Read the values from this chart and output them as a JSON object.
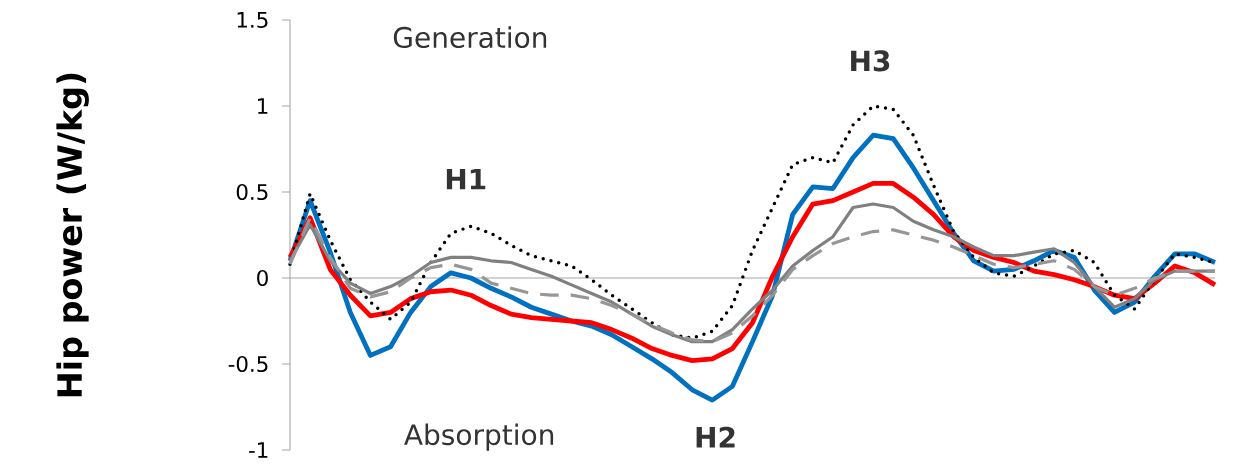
{
  "chart_data": {
    "type": "line",
    "ylabel": "Hip power (W/kg)",
    "categories": [
      null,
      null,
      null,
      null,
      null,
      null,
      null,
      null,
      null,
      null,
      null,
      null,
      null,
      null,
      null,
      null,
      null,
      null,
      null,
      null,
      null,
      null,
      null,
      null,
      null,
      null,
      null,
      null,
      null,
      null,
      null,
      null,
      null,
      null,
      null,
      null,
      null,
      null,
      null,
      null,
      null,
      null,
      null,
      null,
      null,
      null,
      null
    ],
    "ylim": [
      -1,
      1.5
    ],
    "yticks": [
      -1,
      -0.5,
      0,
      0.5,
      1,
      1.5
    ],
    "annotations": [
      "Generation",
      "Absorption",
      "H1",
      "H2",
      "H3"
    ],
    "series": [
      {
        "color": "#0070c0",
        "line_style": "solid",
        "values": [
          0.1,
          0.45,
          0.15,
          -0.2,
          -0.45,
          -0.4,
          -0.2,
          -0.05,
          0.03,
          0.0,
          -0.06,
          -0.11,
          -0.17,
          -0.21,
          -0.25,
          -0.28,
          -0.33,
          -0.4,
          -0.47,
          -0.55,
          -0.65,
          -0.71,
          -0.63,
          -0.37,
          -0.1,
          0.37,
          0.53,
          0.52,
          0.7,
          0.83,
          0.81,
          0.64,
          0.45,
          0.26,
          0.1,
          0.04,
          0.05,
          0.1,
          0.16,
          0.12,
          -0.07,
          -0.2,
          -0.14,
          0.01,
          0.14,
          0.14,
          0.09
        ]
      },
      {
        "color": "#ff0000",
        "line_style": "solid",
        "values": [
          0.12,
          0.35,
          0.05,
          -0.1,
          -0.22,
          -0.2,
          -0.12,
          -0.08,
          -0.07,
          -0.1,
          -0.16,
          -0.21,
          -0.23,
          -0.24,
          -0.25,
          -0.26,
          -0.3,
          -0.35,
          -0.41,
          -0.45,
          -0.48,
          -0.47,
          -0.41,
          -0.26,
          0.01,
          0.24,
          0.43,
          0.45,
          0.5,
          0.55,
          0.55,
          0.47,
          0.37,
          0.24,
          0.16,
          0.12,
          0.09,
          0.04,
          0.02,
          -0.01,
          -0.05,
          -0.1,
          -0.12,
          -0.03,
          0.07,
          0.03,
          -0.04
        ]
      },
      {
        "color": "#000000",
        "line_style": "dotted",
        "values": [
          0.08,
          0.49,
          0.22,
          -0.01,
          -0.14,
          -0.24,
          -0.14,
          0.09,
          0.26,
          0.3,
          0.26,
          0.19,
          0.13,
          0.1,
          0.07,
          -0.01,
          -0.1,
          -0.18,
          -0.26,
          -0.33,
          -0.35,
          -0.31,
          -0.16,
          0.16,
          0.41,
          0.66,
          0.7,
          0.67,
          0.89,
          1.0,
          0.98,
          0.83,
          0.54,
          0.27,
          0.12,
          0.03,
          0.01,
          0.07,
          0.14,
          0.16,
          0.09,
          -0.1,
          -0.18,
          -0.01,
          0.14,
          0.12,
          0.09
        ]
      },
      {
        "color": "#808080",
        "line_style": "solid",
        "values": [
          0.1,
          0.31,
          0.1,
          -0.03,
          -0.09,
          -0.05,
          0.01,
          0.09,
          0.12,
          0.12,
          0.1,
          0.09,
          0.05,
          0.01,
          -0.04,
          -0.09,
          -0.14,
          -0.21,
          -0.28,
          -0.33,
          -0.37,
          -0.37,
          -0.3,
          -0.18,
          -0.07,
          0.07,
          0.16,
          0.24,
          0.41,
          0.43,
          0.41,
          0.33,
          0.28,
          0.24,
          0.18,
          0.13,
          0.13,
          0.15,
          0.17,
          0.09,
          -0.05,
          -0.17,
          -0.12,
          -0.01,
          0.04,
          0.04,
          0.04
        ]
      },
      {
        "color": "#969696",
        "line_style": "dashed",
        "values": [
          0.08,
          0.35,
          0.12,
          -0.06,
          -0.11,
          -0.08,
          0.0,
          0.06,
          0.08,
          0.05,
          -0.03,
          -0.06,
          -0.09,
          -0.1,
          -0.1,
          -0.12,
          -0.16,
          -0.21,
          -0.27,
          -0.32,
          -0.36,
          -0.37,
          -0.32,
          -0.22,
          -0.1,
          0.05,
          0.13,
          0.2,
          0.24,
          0.27,
          0.28,
          0.25,
          0.22,
          0.18,
          0.13,
          0.08,
          0.06,
          0.08,
          0.1,
          0.05,
          -0.05,
          -0.1,
          -0.06,
          0.0,
          0.04,
          0.04,
          0.04
        ]
      }
    ]
  }
}
